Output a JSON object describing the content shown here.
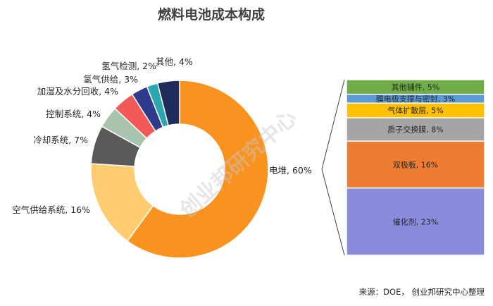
{
  "chart_data": [
    {
      "type": "pie",
      "title": "燃料电池成本构成",
      "categories": [
        "电堆",
        "空气供给系统",
        "冷却系统",
        "控制系统",
        "加湿及水分回收",
        "氢气供给",
        "氢气检测",
        "其他"
      ],
      "values": [
        60,
        16,
        7,
        4,
        4,
        3,
        2,
        4
      ],
      "labels": [
        "电堆, 60%",
        "空气供给系统, 16%",
        "冷却系统, 7%",
        "控制系统, 4%",
        "加湿及水分回收, 4%",
        "氢气供给, 3%",
        "氢气检测, 2%",
        "其他, 4%"
      ],
      "colors": [
        "#F7931E",
        "#FFCC70",
        "#595959",
        "#A9C4AE",
        "#F25A5A",
        "#2E3A8C",
        "#2AA7B0",
        "#1F2C5C"
      ]
    },
    {
      "type": "bar",
      "categories": [
        "催化剂",
        "双极板",
        "质子交换膜",
        "气体扩散层",
        "膜电极支撑与密封",
        "其他辅件"
      ],
      "values": [
        23,
        16,
        8,
        5,
        3,
        5
      ],
      "labels": [
        "催化剂, 23%",
        "双极板, 16%",
        "质子交换膜, 8%",
        "气体扩散层, 5%",
        "膜电极支撑与密封, 3%",
        "其他辅件, 5%"
      ],
      "colors": [
        "#8B8BDB",
        "#ED7D31",
        "#A5A5A5",
        "#FFC000",
        "#5B9BD5",
        "#70AD47"
      ]
    }
  ],
  "source": "来源：DOE，  创业邦研究中心整理",
  "watermark": "创业邦研究中心"
}
